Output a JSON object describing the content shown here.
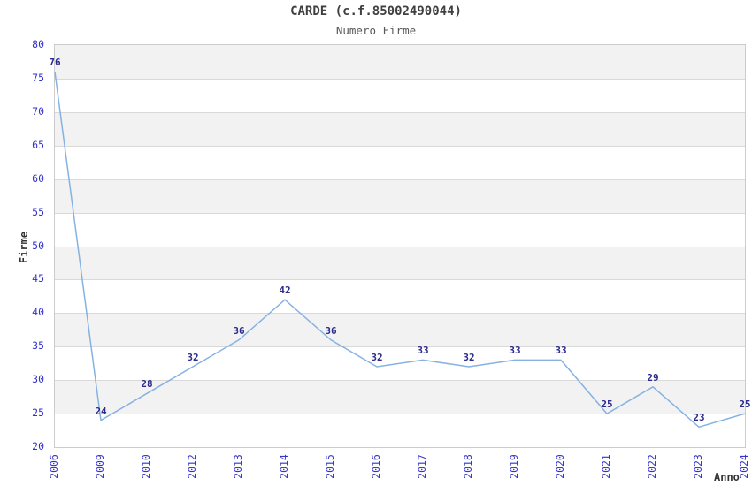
{
  "chart_data": {
    "type": "line",
    "title": "CARDE (c.f.85002490044)",
    "subtitle": "Numero Firme",
    "xlabel": "Anno",
    "ylabel": "Firme",
    "categories": [
      "2006",
      "2009",
      "2010",
      "2012",
      "2013",
      "2014",
      "2015",
      "2016",
      "2017",
      "2018",
      "2019",
      "2020",
      "2021",
      "2022",
      "2023",
      "2024"
    ],
    "values": [
      76,
      24,
      28,
      32,
      36,
      42,
      36,
      32,
      33,
      32,
      33,
      33,
      25,
      29,
      23,
      25
    ],
    "ylim": [
      20,
      80
    ],
    "ytick_step": 5,
    "yticks": [
      80,
      75,
      70,
      65,
      60,
      55,
      50,
      45,
      40,
      35,
      30,
      25,
      20
    ],
    "grid": "horizontal-gridlines-with-alternating-bands",
    "band_pattern": "gray band at top (75-80), alternating down to white (20-25)",
    "legend": "none",
    "markers": "none",
    "x_tick_rotation_deg": -90
  },
  "colors": {
    "line": "#85b2e3",
    "tick_label": "#3333cc",
    "data_label": "#2b2b8c",
    "band_gray": "#f2f2f2",
    "gridline": "#d9d9d9",
    "plot_border": "#cccccc",
    "title": "#404040",
    "subtitle": "#595959",
    "axis_label": "#333333",
    "background": "#ffffff"
  }
}
